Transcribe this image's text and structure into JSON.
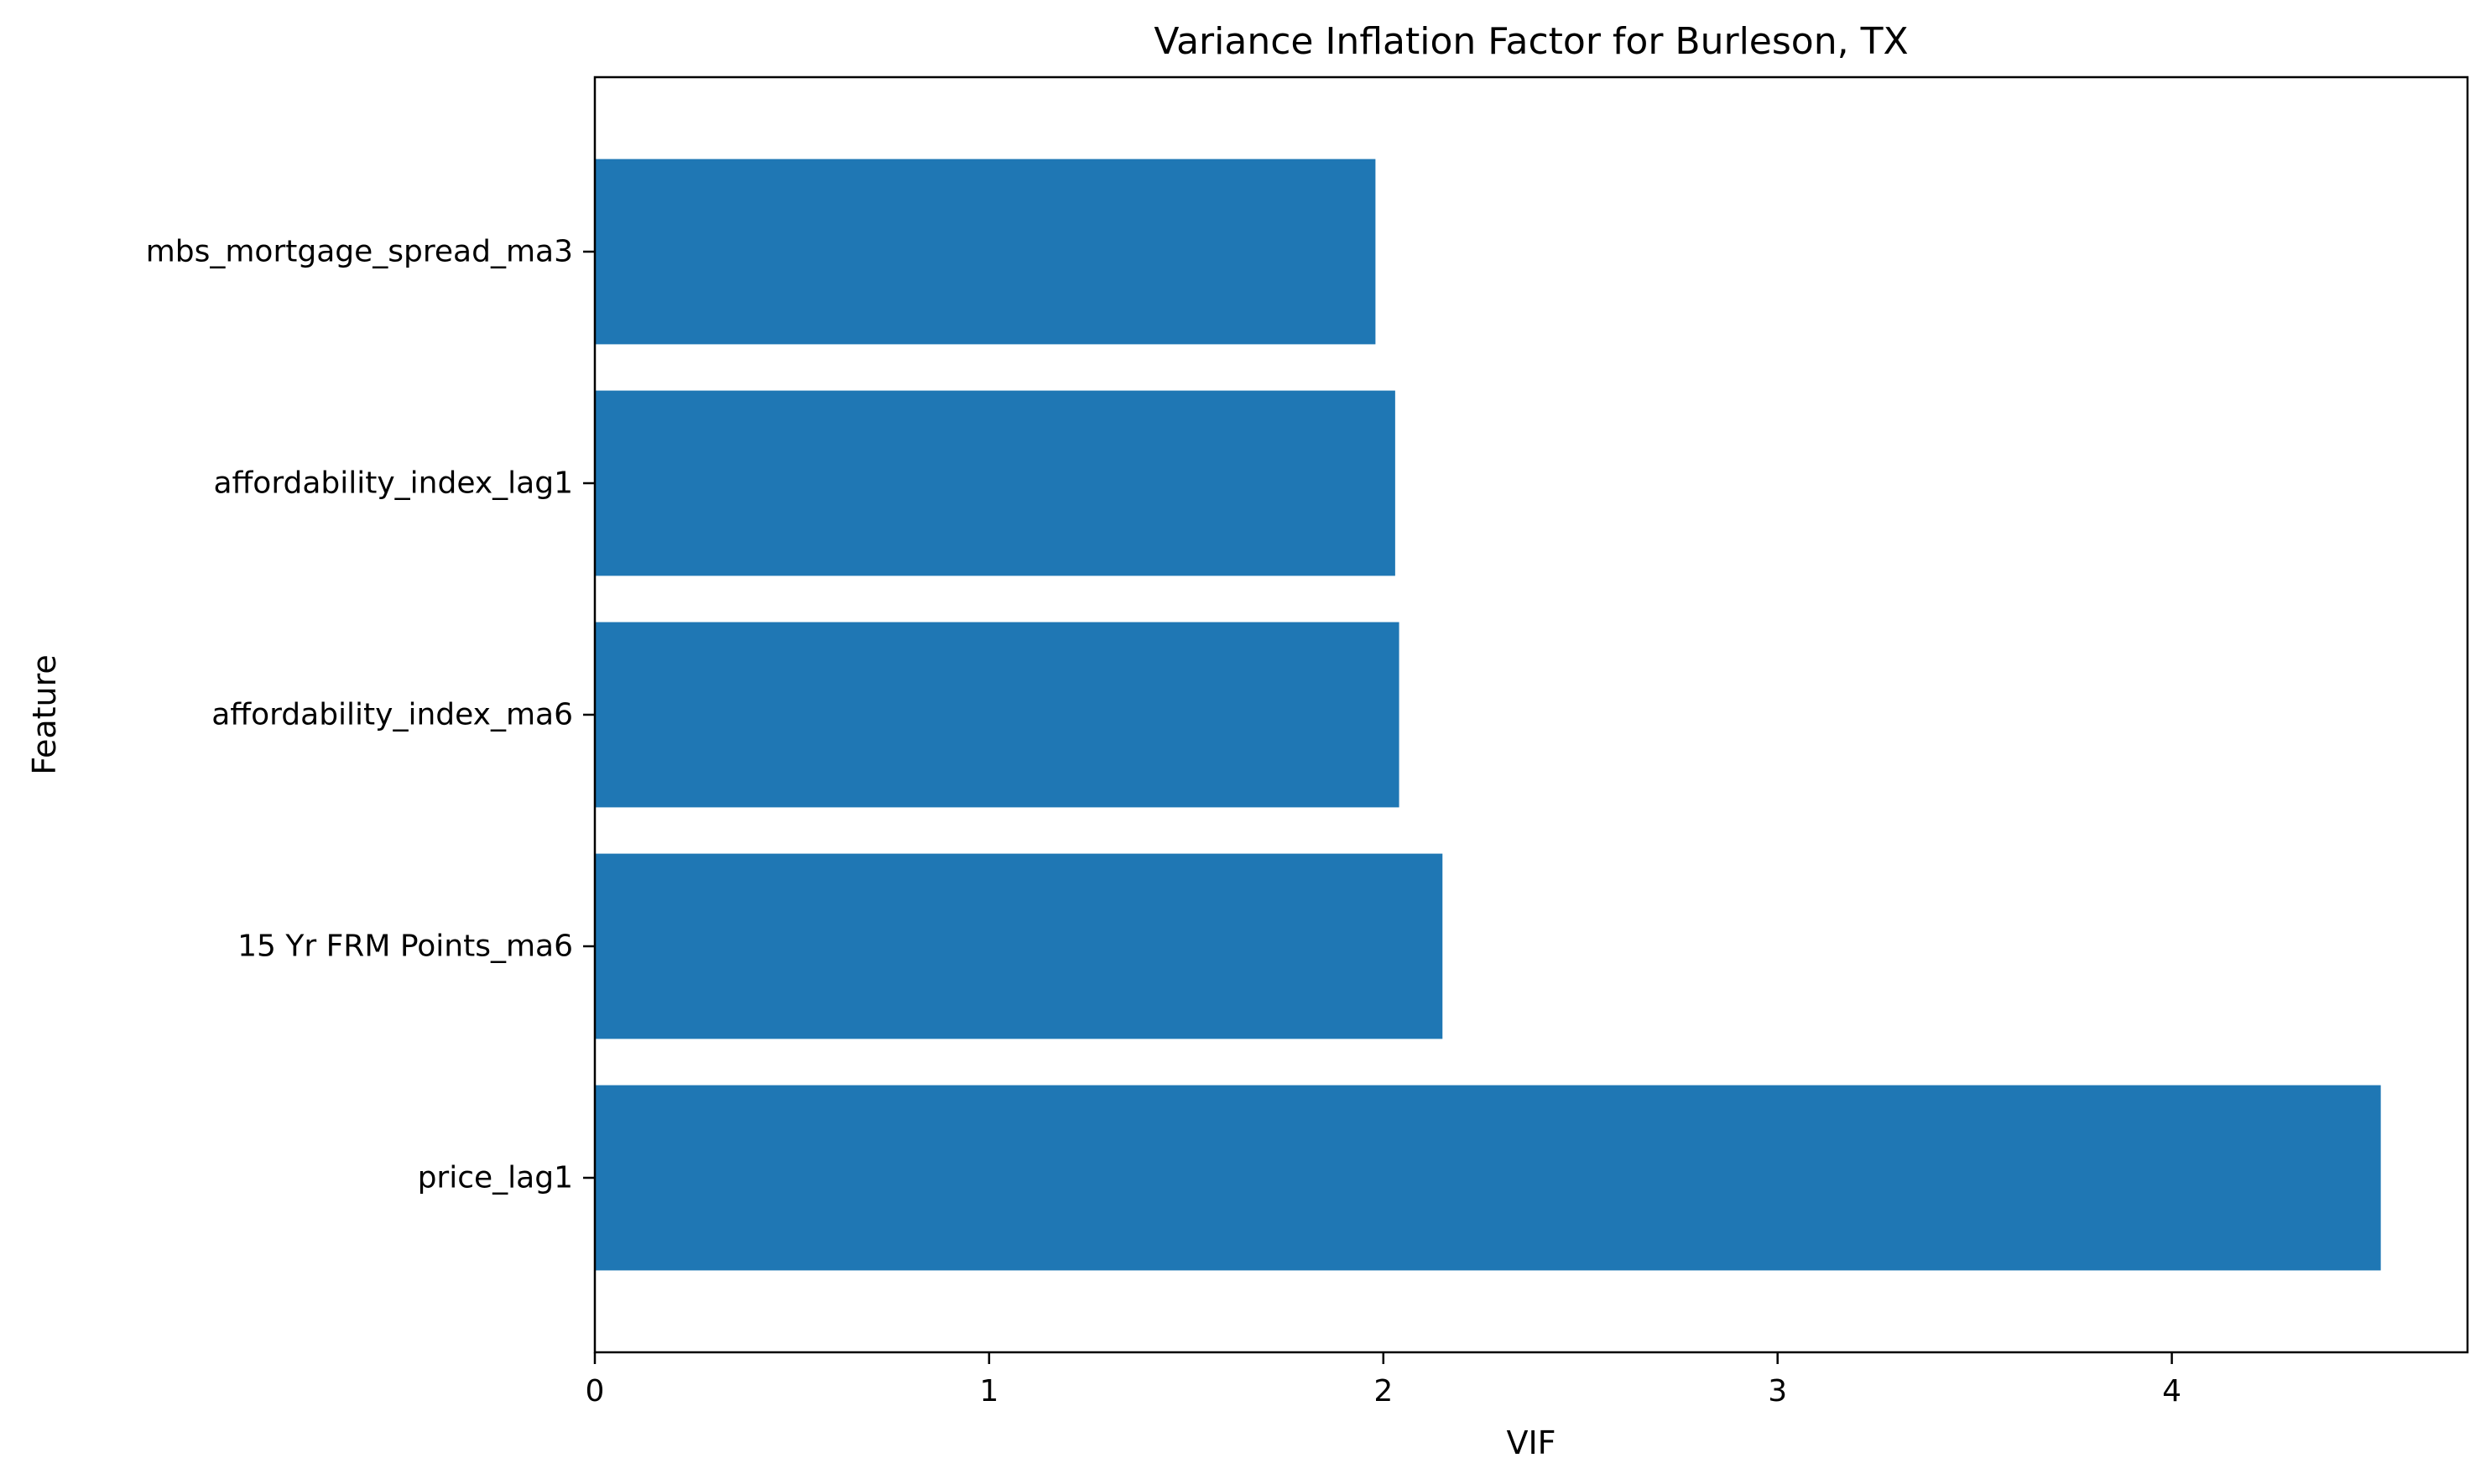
{
  "chart_data": {
    "type": "bar",
    "orientation": "horizontal",
    "title": "Variance Inflation Factor for Burleson, TX",
    "xlabel": "VIF",
    "ylabel": "Feature",
    "categories": [
      "mbs_mortgage_spread_ma3",
      "affordability_index_lag1",
      "affordability_index_ma6",
      "15 Yr FRM Points_ma6",
      "price_lag1"
    ],
    "values": [
      1.98,
      2.03,
      2.04,
      2.15,
      4.53
    ],
    "xlim": [
      0,
      4.75
    ],
    "xticks": [
      0,
      1,
      2,
      3,
      4
    ],
    "grid": false,
    "bar_color": "#1f77b4"
  }
}
